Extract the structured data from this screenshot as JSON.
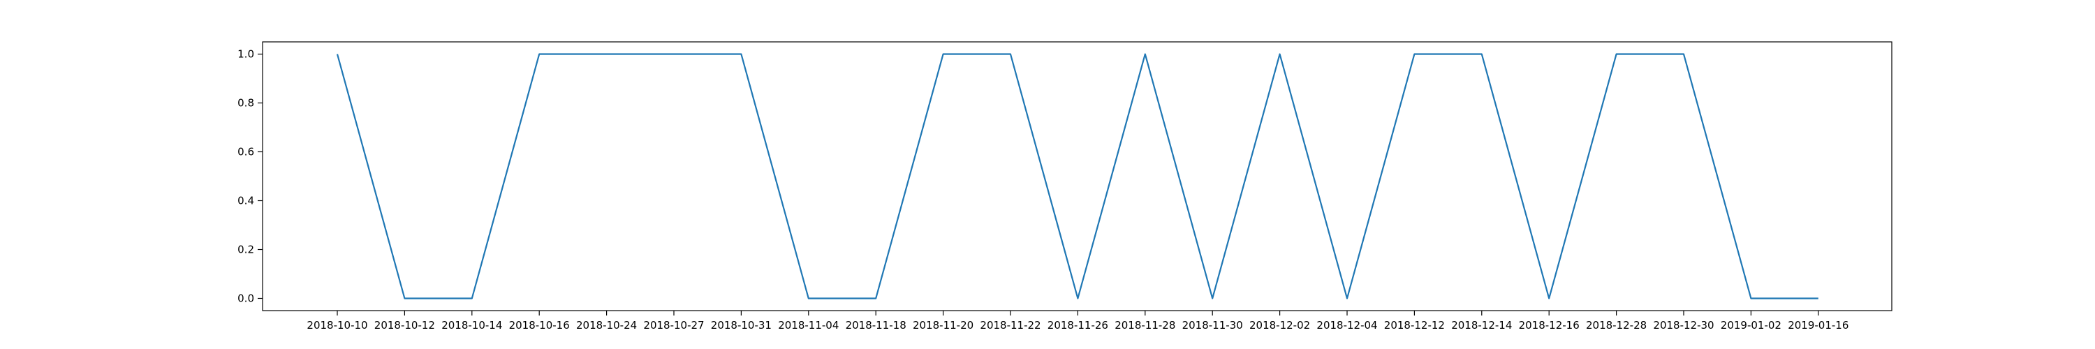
{
  "chart_data": {
    "type": "line",
    "title": "",
    "xlabel": "",
    "ylabel": "",
    "x": [
      "2018-10-10",
      "2018-10-12",
      "2018-10-14",
      "2018-10-16",
      "2018-10-24",
      "2018-10-27",
      "2018-10-31",
      "2018-11-04",
      "2018-11-18",
      "2018-11-20",
      "2018-11-22",
      "2018-11-26",
      "2018-11-28",
      "2018-11-30",
      "2018-12-02",
      "2018-12-04",
      "2018-12-12",
      "2018-12-14",
      "2018-12-16",
      "2018-12-28",
      "2018-12-30",
      "2019-01-02",
      "2019-01-16"
    ],
    "series": [
      {
        "values": [
          1,
          0,
          0,
          1,
          1,
          1,
          1,
          0,
          0,
          1,
          1,
          0,
          1,
          0,
          1,
          0,
          1,
          1,
          0,
          1,
          1,
          0,
          0
        ]
      }
    ],
    "ylim": [
      -0.05,
      1.05
    ],
    "yticks": [
      0.0,
      0.2,
      0.4,
      0.6,
      0.8,
      1.0
    ],
    "ytick_labels": [
      "0.0",
      "0.2",
      "0.4",
      "0.6",
      "0.8",
      "1.0"
    ],
    "grid": false,
    "line_color": "#1f77b4"
  }
}
